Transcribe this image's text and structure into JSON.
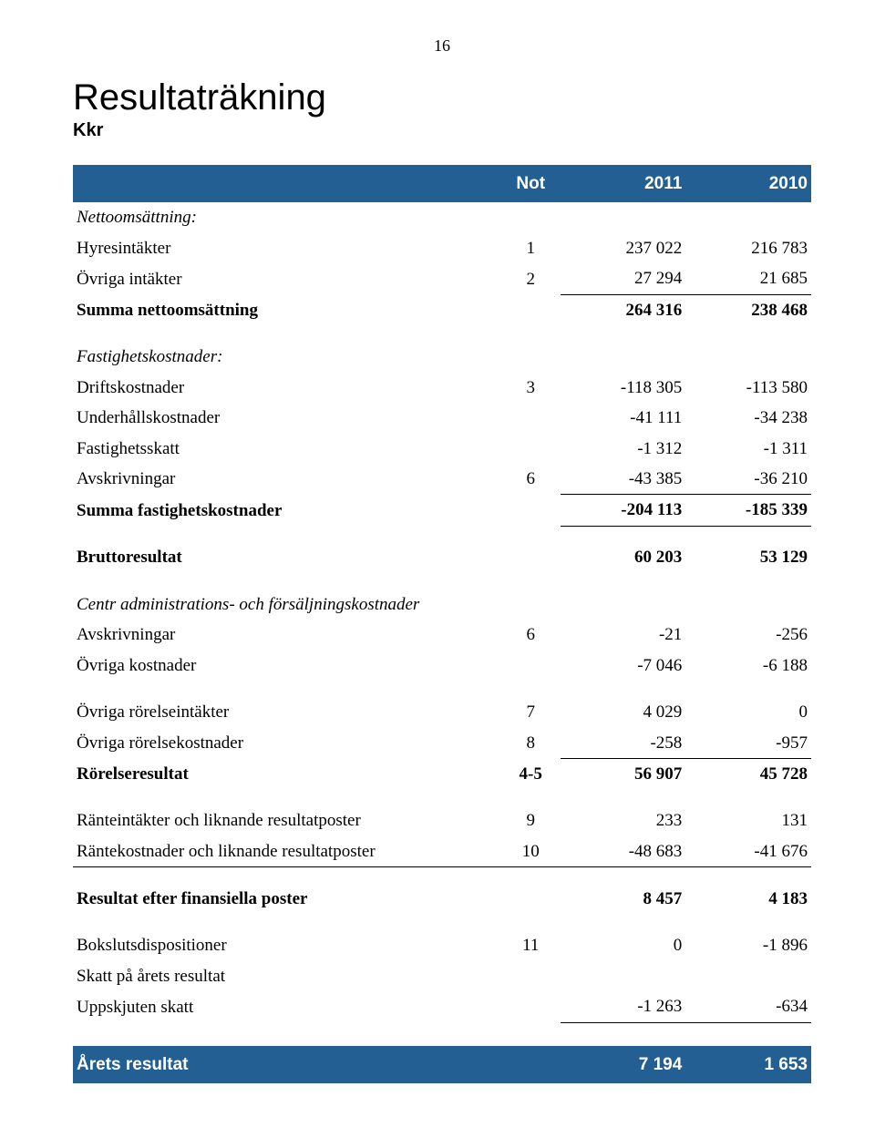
{
  "page_number": "16",
  "title": "Resultaträkning",
  "subtitle": "Kkr",
  "header": {
    "not": "Not",
    "year1": "2011",
    "year2": "2010"
  },
  "header_bg": "#235f93",
  "final_row_bg": "#235f93",
  "rows": [
    {
      "style": "section-italic",
      "label": "Nettoomsättning:"
    },
    {
      "label": "Hyresintäkter",
      "not": "1",
      "y1": "237 022",
      "y2": "216 783"
    },
    {
      "label": "Övriga intäkter",
      "not": "2",
      "y1": "27 294",
      "y2": "21 685",
      "cls": "underline-single"
    },
    {
      "label": "Summa nettoomsättning",
      "y1": "264 316",
      "y2": "238 468",
      "cls": "bold"
    },
    {
      "cls": "spacer"
    },
    {
      "style": "section-italic",
      "label": "Fastighetskostnader:"
    },
    {
      "label": "Driftskostnader",
      "not": "3",
      "y1": "-118 305",
      "y2": "-113 580"
    },
    {
      "label": "Underhållskostnader",
      "y1": "-41 111",
      "y2": "-34 238"
    },
    {
      "label": "Fastighetsskatt",
      "y1": "-1 312",
      "y2": "-1 311"
    },
    {
      "label": "Avskrivningar",
      "not": "6",
      "y1": "-43 385",
      "y2": "-36 210",
      "cls": "underline-single"
    },
    {
      "label": "Summa fastighetskostnader",
      "y1": "-204 113",
      "y2": "-185 339",
      "cls": "bold underline-single"
    },
    {
      "cls": "spacer"
    },
    {
      "label": "Bruttoresultat",
      "y1": "60 203",
      "y2": "53 129",
      "cls": "bold"
    },
    {
      "cls": "spacer"
    },
    {
      "style": "section-italic",
      "label": "Centr administrations- och försäljningskostnader"
    },
    {
      "label": "Avskrivningar",
      "not": "6",
      "y1": "-21",
      "y2": "-256"
    },
    {
      "label": "Övriga kostnader",
      "y1": "-7 046",
      "y2": "-6 188"
    },
    {
      "cls": "spacer"
    },
    {
      "label": "Övriga rörelseintäkter",
      "not": "7",
      "y1": "4 029",
      "y2": "0"
    },
    {
      "label": "Övriga rörelsekostnader",
      "not": "8",
      "y1": "-258",
      "y2": "-957",
      "cls": "underline-single"
    },
    {
      "label": "Rörelseresultat",
      "not": "4-5",
      "y1": "56 907",
      "y2": "45 728",
      "cls": "bold"
    },
    {
      "cls": "spacer"
    },
    {
      "label": "Ränteintäkter och liknande resultatposter",
      "not": "9",
      "y1": "233",
      "y2": "131"
    },
    {
      "label": "Räntekostnader och liknande resultatposter",
      "not": "10",
      "y1": "-48 683",
      "y2": "-41 676",
      "cls": "underline-both"
    },
    {
      "cls": "spacer"
    },
    {
      "label": "Resultat efter finansiella poster",
      "y1": "8 457",
      "y2": "4 183",
      "cls": "bold"
    },
    {
      "cls": "spacer"
    },
    {
      "label": "Bokslutsdispositioner",
      "not": "11",
      "y1": "0",
      "y2": "-1 896"
    },
    {
      "label": "Skatt på årets resultat"
    },
    {
      "label": "Uppskjuten skatt",
      "y1": "-1 263",
      "y2": "-634",
      "cls": "underline-single"
    },
    {
      "cls": "spacer-lg"
    }
  ],
  "final_row": {
    "label": "Årets resultat",
    "y1": "7 194",
    "y2": "1 653"
  }
}
